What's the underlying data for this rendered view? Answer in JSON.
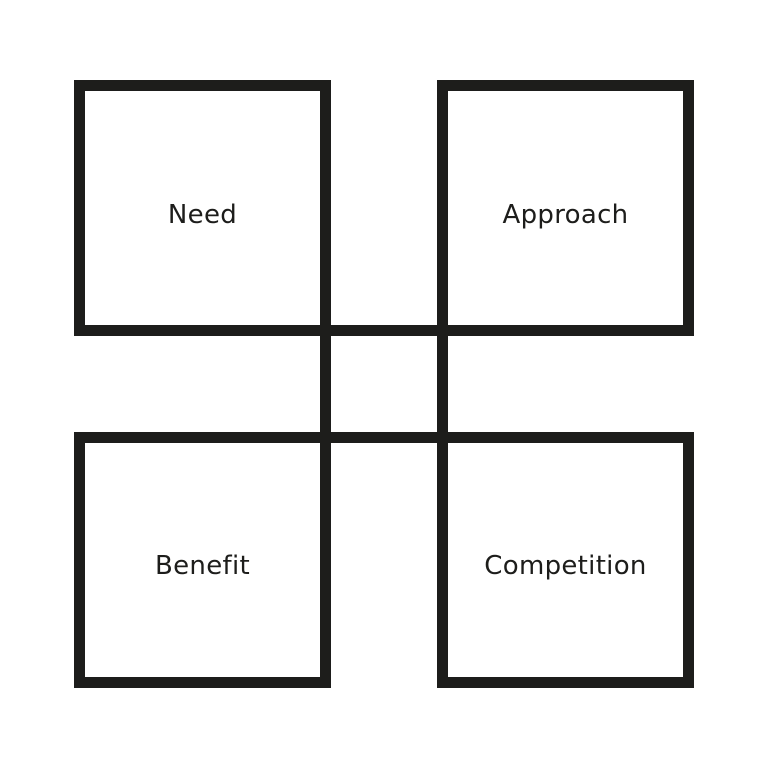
{
  "diagram": {
    "quadrants": {
      "top_left": {
        "label": "Need"
      },
      "top_right": {
        "label": "Approach"
      },
      "bottom_left": {
        "label": "Benefit"
      },
      "bottom_right": {
        "label": "Competition"
      }
    },
    "colors": {
      "stroke": "#1d1d1b",
      "text": "#1d1d1b",
      "background": "#ffffff"
    }
  }
}
